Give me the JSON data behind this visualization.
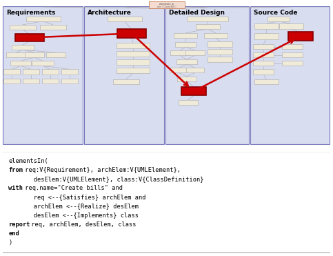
{
  "panel_titles": [
    "Requirements",
    "Architecture",
    "Detailed Design",
    "Source Code"
  ],
  "panel_bg_color": "#d8ddf0",
  "panel_border_color": "#7777bb",
  "node_fill": "#f0ead8",
  "node_border": "#aaaaaa",
  "red_fill": "#cc0000",
  "red_border": "#880000",
  "top_box_fill": "#f5dcd0",
  "top_box_border": "#cc8866",
  "overall_bg": "#ffffff",
  "code_lines": [
    [
      "n",
      "elementsIn("
    ],
    [
      "b",
      "from",
      "n",
      " req:V{Requirement}, archElem:V{UMLElement},"
    ],
    [
      "n",
      "       desElem:V{UMLElement}, class:V{ClassDefinition}"
    ],
    [
      "b",
      "with",
      "n",
      " req.name=\"Create bills\" and"
    ],
    [
      "n",
      "       req <--{Satisfies} archElem and"
    ],
    [
      "n",
      "       archElem <--{Realize} desElem"
    ],
    [
      "n",
      "       desElem <--{Implements} class"
    ],
    [
      "b",
      "report",
      "n",
      " req, archElem, desElem, class"
    ],
    [
      "b",
      "end",
      "n",
      ""
    ],
    [
      "n",
      ")"
    ]
  ]
}
